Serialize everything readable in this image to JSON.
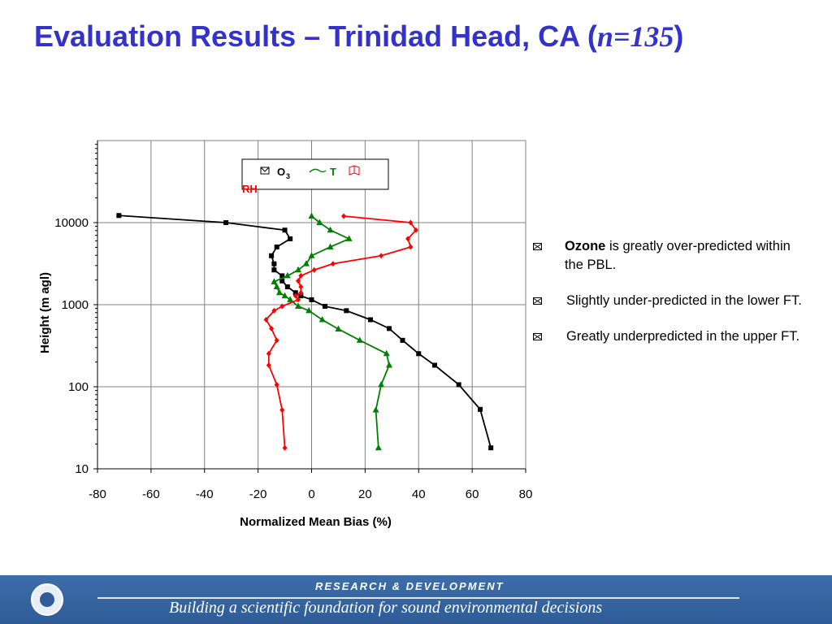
{
  "title": {
    "main": "Evaluation Results – Trinidad Head, CA (",
    "n_label": "n=135",
    "close": ")"
  },
  "bullets": [
    {
      "bold": "Ozone",
      "text": " is greatly over-predicted within the PBL."
    },
    {
      "bold": "",
      "text": "Slightly under-predicted in the lower FT."
    },
    {
      "bold": "",
      "text": "Greatly underpredicted in the upper FT."
    }
  ],
  "footer": {
    "top": "RESEARCH & DEVELOPMENT",
    "bottom": "Building a scientific foundation for sound environmental decisions"
  },
  "chart_data": {
    "type": "line",
    "xlabel": "Normalized Mean Bias (%)",
    "ylabel": "Height (m agl)",
    "xlim": [
      -80,
      80
    ],
    "ylim": [
      10,
      100000
    ],
    "yscale": "log",
    "grid": true,
    "xticks": [
      "-80",
      "-60",
      "-40",
      "-20",
      "0",
      "20",
      "40",
      "60",
      "80"
    ],
    "yticks": [
      {
        "value": 10,
        "label": "10"
      },
      {
        "value": 100,
        "label": "100"
      },
      {
        "value": 1000,
        "label": "1000"
      },
      {
        "value": 10000,
        "label": "10000"
      }
    ],
    "legend": {
      "position": "top-center",
      "o3": "O",
      "o3_sub": "3",
      "t": "T",
      "rh": "RH"
    },
    "series": [
      {
        "name": "O3",
        "color": "#000000",
        "marker": "square",
        "points": [
          [
            67,
            18
          ],
          [
            63,
            53
          ],
          [
            55,
            106
          ],
          [
            46,
            183
          ],
          [
            40,
            253
          ],
          [
            34,
            368
          ],
          [
            29,
            512
          ],
          [
            22,
            656
          ],
          [
            13,
            845
          ],
          [
            5,
            955
          ],
          [
            0,
            1150
          ],
          [
            -4,
            1280
          ],
          [
            -6,
            1400
          ],
          [
            -9,
            1650
          ],
          [
            -11,
            1950
          ],
          [
            -11,
            2250
          ],
          [
            -14,
            2650
          ],
          [
            -14,
            3150
          ],
          [
            -15,
            3950
          ],
          [
            -13,
            5050
          ],
          [
            -8,
            6350
          ],
          [
            -10,
            8100
          ],
          [
            -32,
            10000
          ],
          [
            -72,
            12200
          ]
        ]
      },
      {
        "name": "T",
        "color": "#008000",
        "marker": "triangle",
        "points": [
          [
            25,
            18
          ],
          [
            24,
            52
          ],
          [
            26,
            106
          ],
          [
            29,
            183
          ],
          [
            28,
            253
          ],
          [
            18,
            368
          ],
          [
            10,
            505
          ],
          [
            4,
            655
          ],
          [
            -1,
            845
          ],
          [
            -5,
            955
          ],
          [
            -8,
            1150
          ],
          [
            -10,
            1280
          ],
          [
            -12,
            1400
          ],
          [
            -13,
            1650
          ],
          [
            -14,
            1900
          ],
          [
            -9,
            2250
          ],
          [
            -5,
            2650
          ],
          [
            -2,
            3150
          ],
          [
            0,
            3950
          ],
          [
            7,
            5050
          ],
          [
            14,
            6350
          ],
          [
            7,
            8100
          ],
          [
            3,
            10000
          ],
          [
            0,
            12000
          ]
        ]
      },
      {
        "name": "RH",
        "color": "#ff0000",
        "marker": "diamond",
        "points": [
          [
            -10,
            18
          ],
          [
            -11,
            52
          ],
          [
            -13,
            106
          ],
          [
            -16,
            183
          ],
          [
            -16,
            253
          ],
          [
            -13,
            368
          ],
          [
            -15,
            512
          ],
          [
            -17,
            656
          ],
          [
            -14,
            845
          ],
          [
            -11,
            955
          ],
          [
            -5,
            1150
          ],
          [
            -6,
            1280
          ],
          [
            -4,
            1400
          ],
          [
            -4,
            1650
          ],
          [
            -5,
            1950
          ],
          [
            -4,
            2250
          ],
          [
            1,
            2650
          ],
          [
            8,
            3150
          ],
          [
            26,
            3950
          ],
          [
            37,
            5050
          ],
          [
            36,
            6350
          ],
          [
            39,
            8100
          ],
          [
            37,
            10000
          ],
          [
            12,
            12000
          ]
        ]
      }
    ]
  }
}
